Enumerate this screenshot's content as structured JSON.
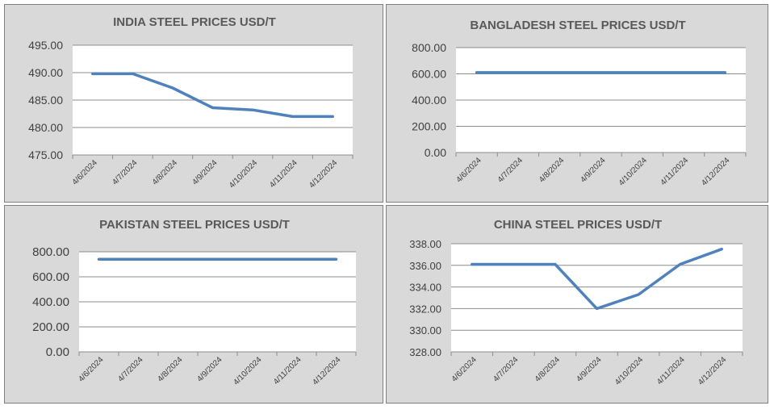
{
  "chart_data": [
    {
      "type": "line",
      "title": "INDIA STEEL PRICES USD/T",
      "categories": [
        "4/6/2024",
        "4/7/2024",
        "4/8/2024",
        "4/9/2024",
        "4/10/2024",
        "4/11/2024",
        "4/12/2024"
      ],
      "series": [
        {
          "values": [
            489.8,
            489.8,
            487.2,
            483.6,
            483.2,
            482.0,
            482.0
          ]
        }
      ],
      "ylim": [
        475,
        495
      ],
      "yticks": [
        "475.00",
        "480.00",
        "485.00",
        "490.00",
        "495.00"
      ],
      "grid": true,
      "line_color": "#4f81bd"
    },
    {
      "type": "line",
      "title": "BANGLADESH STEEL PRICES USD/T",
      "categories": [
        "4/6/2024",
        "4/7/2024",
        "4/8/2024",
        "4/9/2024",
        "4/10/2024",
        "4/11/2024",
        "4/12/2024"
      ],
      "series": [
        {
          "values": [
            610,
            610,
            610,
            610,
            610,
            610,
            610
          ]
        }
      ],
      "ylim": [
        0,
        800
      ],
      "yticks": [
        "0.00",
        "200.00",
        "400.00",
        "600.00",
        "800.00"
      ],
      "grid": true,
      "line_color": "#4f81bd"
    },
    {
      "type": "line",
      "title": "PAKISTAN STEEL PRICES USD/T",
      "categories": [
        "4/6/2024",
        "4/7/2024",
        "4/8/2024",
        "4/9/2024",
        "4/10/2024",
        "4/11/2024",
        "4/12/2024"
      ],
      "series": [
        {
          "values": [
            740,
            740,
            740,
            740,
            740,
            740,
            740
          ]
        }
      ],
      "ylim": [
        0,
        800
      ],
      "yticks": [
        "0.00",
        "200.00",
        "400.00",
        "600.00",
        "800.00"
      ],
      "grid": true,
      "line_color": "#4f81bd"
    },
    {
      "type": "line",
      "title": "CHINA STEEL PRICES USD/T",
      "categories": [
        "4/6/2024",
        "4/7/2024",
        "4/8/2024",
        "4/9/2024",
        "4/10/2024",
        "4/11/2024",
        "4/12/2024"
      ],
      "series": [
        {
          "values": [
            336.1,
            336.1,
            336.1,
            332.0,
            333.3,
            336.1,
            337.5
          ]
        }
      ],
      "ylim": [
        328,
        338
      ],
      "yticks": [
        "328.00",
        "330.00",
        "332.00",
        "334.00",
        "336.00",
        "338.00"
      ],
      "grid": true,
      "line_color": "#4f81bd"
    }
  ]
}
